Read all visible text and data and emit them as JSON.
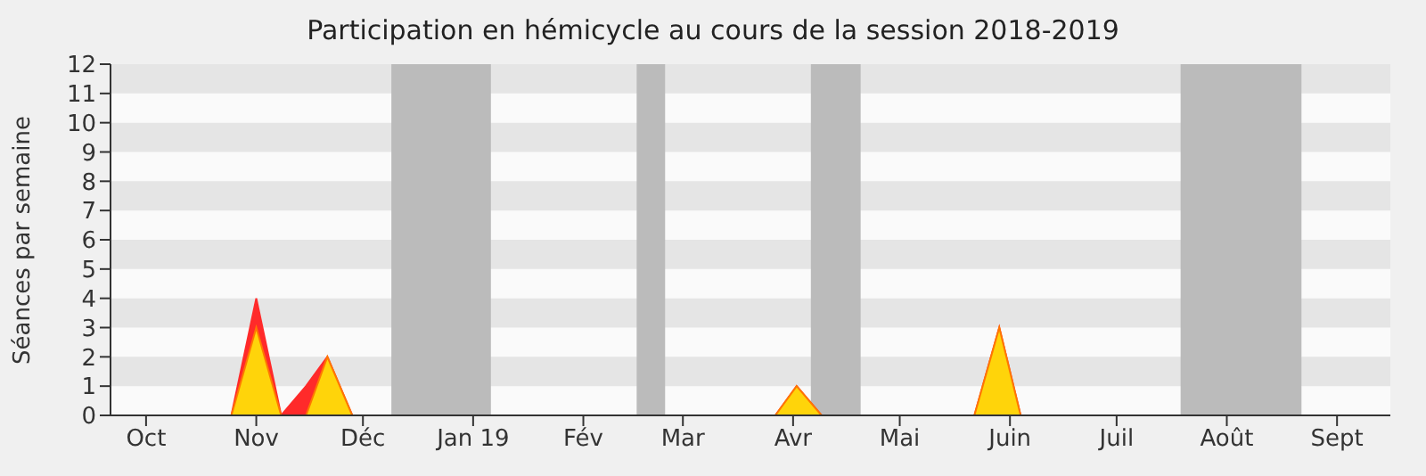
{
  "chart_data": {
    "type": "area",
    "title": "Participation en hémicycle au cours de la session 2018-2019",
    "ylabel": "Séances par semaine",
    "x": [
      "2018-09-21",
      "2018-10-25",
      "2018-11-01",
      "2018-11-08",
      "2018-11-15",
      "2018-11-21",
      "2018-11-28",
      "2019-03-27",
      "2019-04-02",
      "2019-04-09",
      "2019-05-22",
      "2019-05-29",
      "2019-06-04",
      "2019-09-16"
    ],
    "series": [
      {
        "color": "#ff2a2a",
        "values": [
          0,
          0,
          4,
          0,
          1,
          2,
          0,
          0,
          1,
          0,
          0,
          3,
          0,
          0
        ]
      },
      {
        "color": "#ffd40a",
        "values": [
          0,
          0,
          3,
          0,
          0,
          2,
          0,
          0,
          1,
          0,
          0,
          3,
          0,
          0
        ]
      }
    ],
    "xlim": [
      "2018-09-21",
      "2019-09-16"
    ],
    "xticks": [
      {
        "value": "2018-10-01",
        "label": "Oct"
      },
      {
        "value": "2018-11-01",
        "label": "Nov"
      },
      {
        "value": "2018-12-01",
        "label": "Déc"
      },
      {
        "value": "2019-01-01",
        "label": "Jan 19"
      },
      {
        "value": "2019-02-01",
        "label": "Fév"
      },
      {
        "value": "2019-03-01",
        "label": "Mar"
      },
      {
        "value": "2019-04-01",
        "label": "Avr"
      },
      {
        "value": "2019-05-01",
        "label": "Mai"
      },
      {
        "value": "2019-06-01",
        "label": "Juin"
      },
      {
        "value": "2019-07-01",
        "label": "Juil"
      },
      {
        "value": "2019-08-01",
        "label": "Août"
      },
      {
        "value": "2019-09-01",
        "label": "Sept"
      }
    ],
    "ylim": [
      0,
      12
    ],
    "yticks": [
      0,
      1,
      2,
      3,
      4,
      5,
      6,
      7,
      8,
      9,
      10,
      11,
      12
    ],
    "bands": [
      {
        "axis": "x",
        "from": "2018-12-09",
        "to": "2019-01-06",
        "color": "#bbbbbb"
      },
      {
        "axis": "x",
        "from": "2019-02-16",
        "to": "2019-02-24",
        "color": "#bbbbbb"
      },
      {
        "axis": "x",
        "from": "2019-04-06",
        "to": "2019-04-20",
        "color": "#bbbbbb"
      },
      {
        "axis": "x",
        "from": "2019-07-19",
        "to": "2019-08-22",
        "color": "#bbbbbb"
      }
    ]
  }
}
